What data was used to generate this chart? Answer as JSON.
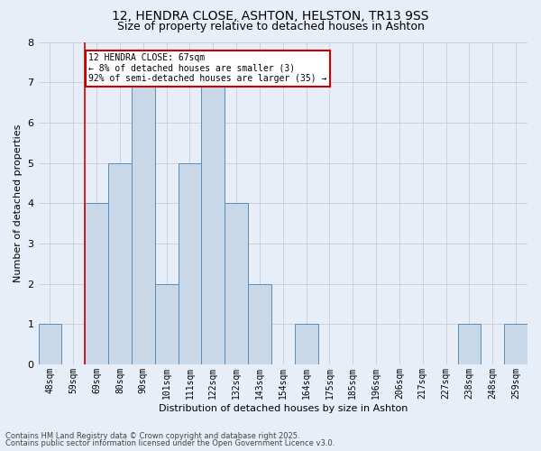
{
  "title_line1": "12, HENDRA CLOSE, ASHTON, HELSTON, TR13 9SS",
  "title_line2": "Size of property relative to detached houses in Ashton",
  "xlabel": "Distribution of detached houses by size in Ashton",
  "ylabel": "Number of detached properties",
  "bin_labels": [
    "48sqm",
    "59sqm",
    "69sqm",
    "80sqm",
    "90sqm",
    "101sqm",
    "111sqm",
    "122sqm",
    "132sqm",
    "143sqm",
    "154sqm",
    "164sqm",
    "175sqm",
    "185sqm",
    "196sqm",
    "206sqm",
    "217sqm",
    "227sqm",
    "238sqm",
    "248sqm",
    "259sqm"
  ],
  "bar_values": [
    1,
    0,
    4,
    5,
    7,
    2,
    5,
    7,
    4,
    2,
    0,
    1,
    0,
    0,
    0,
    0,
    0,
    0,
    1,
    0,
    1
  ],
  "bar_color": "#c8d8e8",
  "bar_edge_color": "#5b8db8",
  "grid_color": "#c8ccd8",
  "background_color": "#e8eef8",
  "red_line_x": 1.5,
  "annotation_text": "12 HENDRA CLOSE: 67sqm\n← 8% of detached houses are smaller (3)\n92% of semi-detached houses are larger (35) →",
  "annotation_box_color": "#ffffff",
  "annotation_box_edge": "#cc0000",
  "footer_line1": "Contains HM Land Registry data © Crown copyright and database right 2025.",
  "footer_line2": "Contains public sector information licensed under the Open Government Licence v3.0.",
  "ylim": [
    0,
    8
  ],
  "yticks": [
    0,
    1,
    2,
    3,
    4,
    5,
    6,
    7,
    8
  ],
  "title1_fontsize": 10,
  "title2_fontsize": 9,
  "xlabel_fontsize": 8,
  "ylabel_fontsize": 8,
  "tick_fontsize": 7,
  "annotation_fontsize": 7,
  "footer_fontsize": 6
}
